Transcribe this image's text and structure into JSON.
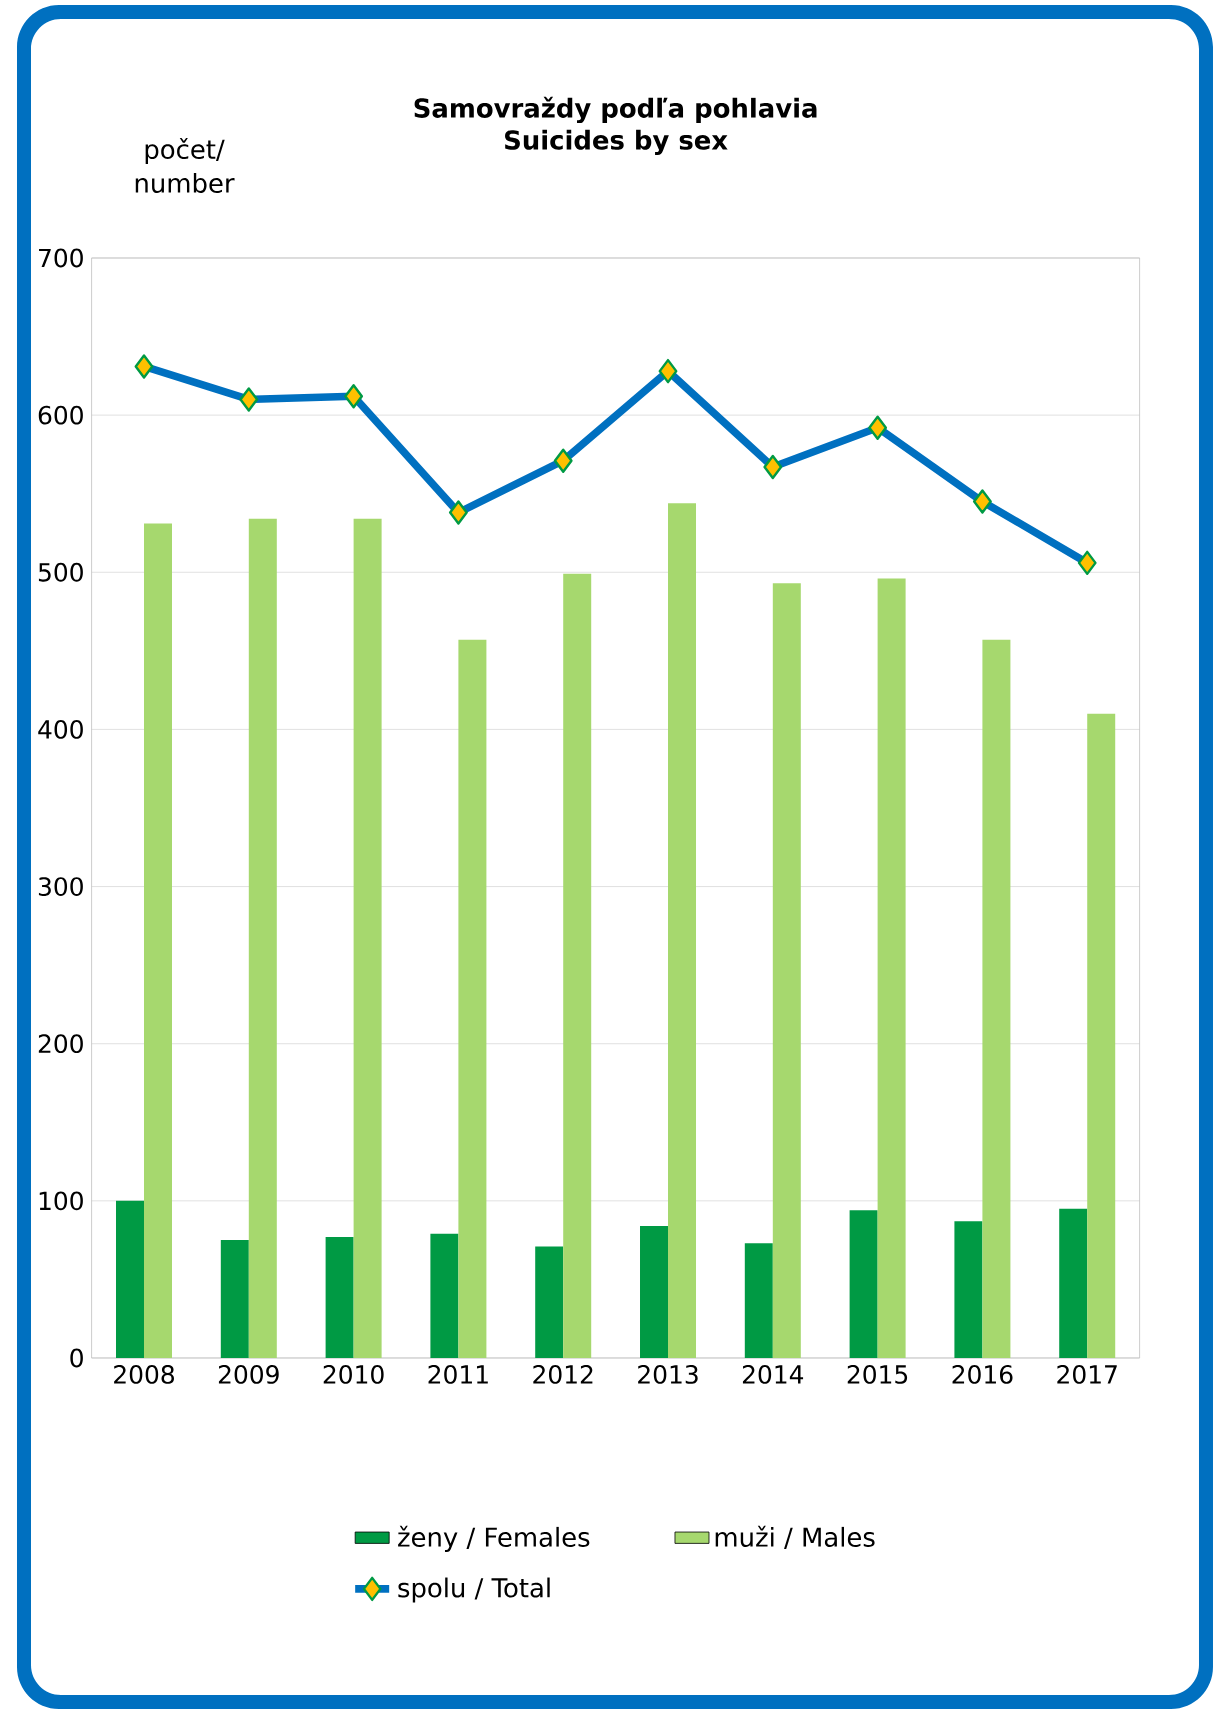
{
  "chart_data": {
    "type": "bar",
    "title": "Samovraždy podľa pohlavia",
    "subtitle": "Suicides by sex",
    "ylabel": "počet/ number",
    "categories": [
      "2008",
      "2009",
      "2010",
      "2011",
      "2012",
      "2013",
      "2014",
      "2015",
      "2016",
      "2017"
    ],
    "series": [
      {
        "name": "ženy / Females",
        "color": "#009a44",
        "values": [
          100,
          75,
          77,
          79,
          71,
          84,
          73,
          94,
          87,
          95
        ]
      },
      {
        "name": "muži / Males",
        "color": "#a6d86e",
        "values": [
          531,
          534,
          534,
          457,
          499,
          544,
          493,
          496,
          457,
          410
        ]
      },
      {
        "name": "spolu / Total",
        "type": "line",
        "color": "#0070c0",
        "marker": "diamond",
        "values": [
          631,
          610,
          612,
          538,
          571,
          628,
          567,
          592,
          545,
          506
        ]
      }
    ],
    "ylim": [
      0,
      700
    ],
    "yticks": [
      0,
      100,
      200,
      300,
      400,
      500,
      600,
      700
    ],
    "grid": "y",
    "legend": "bottom"
  }
}
